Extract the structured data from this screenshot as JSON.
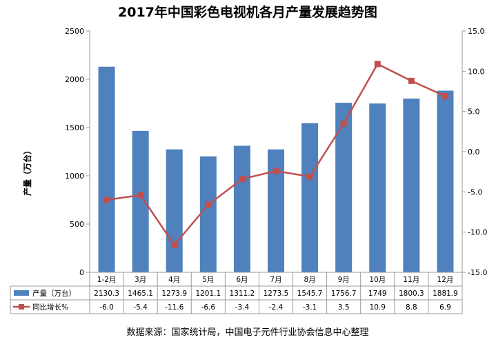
{
  "chart_data": {
    "type": "bar",
    "title": "2017年中国彩色电视机各月产量发展趋势图",
    "ylabel": "产量（万台）",
    "source": "数据来源：国家统计局，中国电子元件行业协会信息中心整理",
    "categories": [
      "1-2月",
      "3月",
      "4月",
      "5月",
      "6月",
      "7月",
      "8月",
      "9月",
      "10月",
      "11月",
      "12月"
    ],
    "left_axis": {
      "min": 0,
      "max": 2500,
      "ticks": [
        "0",
        "500",
        "1000",
        "1500",
        "2000",
        "2500"
      ]
    },
    "right_axis": {
      "min": -15,
      "max": 15,
      "ticks": [
        "-15.0",
        "-10.0",
        "-5.0",
        "0.0",
        "5.0",
        "10.0",
        "15.0"
      ]
    },
    "grid": false,
    "legend": "data-table",
    "series": [
      {
        "name": "产量（万台）",
        "type": "bar",
        "axis": "left",
        "color": "#4f81bd",
        "values": [
          2130.3,
          1465.1,
          1273.9,
          1201.1,
          1311.2,
          1273.5,
          1545.7,
          1756.7,
          1749,
          1800.3,
          1881.9
        ],
        "labels": [
          "2130.3",
          "1465.1",
          "1273.9",
          "1201.1",
          "1311.2",
          "1273.5",
          "1545.7",
          "1756.7",
          "1749",
          "1800.3",
          "1881.9"
        ]
      },
      {
        "name": "同比增长%",
        "type": "line",
        "axis": "right",
        "color": "#c0504d",
        "values": [
          -6.0,
          -5.4,
          -11.6,
          -6.6,
          -3.4,
          -2.4,
          -3.1,
          3.5,
          10.9,
          8.8,
          6.9
        ],
        "labels": [
          "-6.0",
          "-5.4",
          "-11.6",
          "-6.6",
          "-3.4",
          "-2.4",
          "-3.1",
          "3.5",
          "10.9",
          "8.8",
          "6.9"
        ]
      }
    ]
  }
}
